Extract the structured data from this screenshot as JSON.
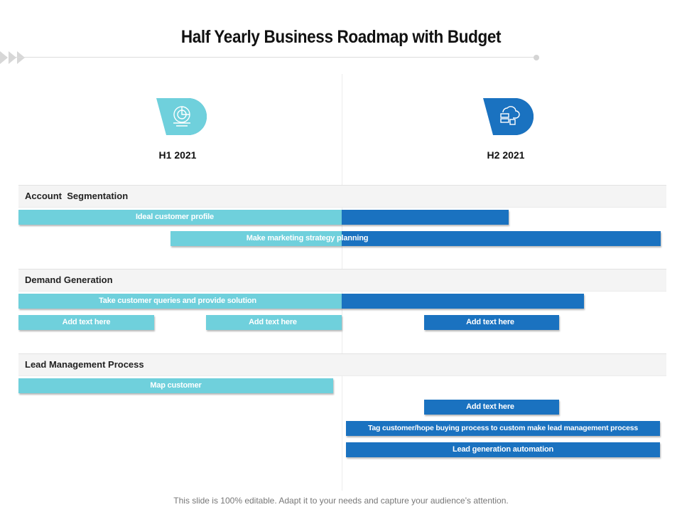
{
  "title": "Half Yearly Business Roadmap with Budget",
  "periods": [
    {
      "label": "H1 2021",
      "icon": "pie-chart-icon",
      "color": "#6fd0dc"
    },
    {
      "label": "H2 2021",
      "icon": "cloud-server-icon",
      "color": "#1a72c0"
    }
  ],
  "sections": [
    {
      "label": "Account  Segmentation",
      "bars": [
        "Ideal customer profile",
        "Make marketing strategy planning"
      ]
    },
    {
      "label": "Demand Generation",
      "bars": [
        "Take customer queries and provide solution",
        "Add text here",
        "Add text here",
        "Add text here"
      ]
    },
    {
      "label": "Lead Management Process",
      "bars": [
        "Map customer",
        "Add text here",
        "Tag customer/hope buying process to custom make lead management process",
        "Lead generation automation"
      ]
    }
  ],
  "footer": "This slide is 100% editable. Adapt it to your needs and capture your audience’s attention.",
  "colors": {
    "h1": "#6fd0dc",
    "h2": "#1a72c0"
  }
}
